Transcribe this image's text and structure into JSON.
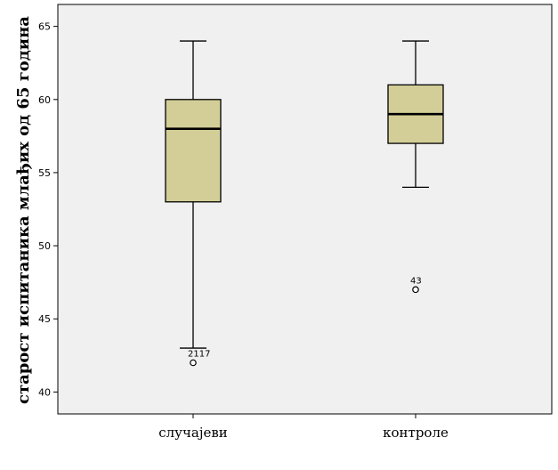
{
  "chart_data": {
    "type": "boxplot",
    "ylabel": "старост испитаника млађих од 65 година",
    "ylim": [
      38.5,
      66.5
    ],
    "yticks": [
      40,
      45,
      50,
      55,
      60,
      65
    ],
    "grid": false,
    "categories": [
      "случајеви",
      "контроле"
    ],
    "boxes": [
      {
        "category": "случајеви",
        "whisker_low": 43,
        "q1": 53,
        "median": 58,
        "q3": 60,
        "whisker_high": 64,
        "outliers": [
          {
            "value": 42,
            "label": "2117"
          }
        ]
      },
      {
        "category": "контроле",
        "whisker_low": 54,
        "q1": 57,
        "median": 59,
        "q3": 61,
        "whisker_high": 64,
        "outliers": [
          {
            "value": 47,
            "label": "43"
          }
        ]
      }
    ],
    "colors": {
      "plot_background": "#f0f0f0",
      "box_fill": "#d3ce97",
      "stroke": "#000000"
    }
  }
}
